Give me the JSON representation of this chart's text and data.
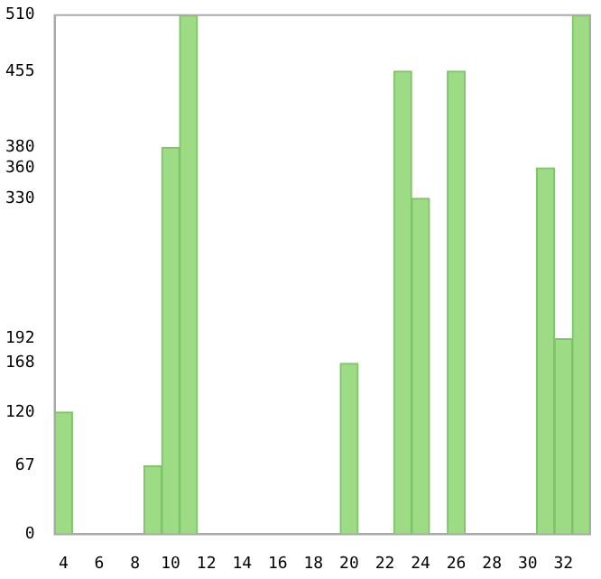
{
  "chart_data": {
    "type": "bar",
    "categories": [
      "4",
      null,
      "6",
      null,
      "8",
      null,
      "10",
      null,
      "12",
      null,
      "14",
      null,
      "16",
      null,
      "18",
      null,
      "20",
      null,
      "22",
      null,
      "24",
      null,
      "26",
      null,
      "28",
      null,
      "30",
      null,
      "32",
      null
    ],
    "values": [
      120,
      0,
      0,
      0,
      0,
      67,
      380,
      510,
      0,
      0,
      0,
      0,
      0,
      0,
      0,
      0,
      168,
      0,
      0,
      455,
      330,
      0,
      455,
      0,
      0,
      0,
      0,
      360,
      192,
      510
    ],
    "color": "#9ddc85",
    "ylim": [
      0,
      510
    ],
    "yticks": [
      0,
      67,
      120,
      168,
      192,
      330,
      360,
      380,
      455,
      510
    ],
    "grid": false,
    "legend": false
  }
}
